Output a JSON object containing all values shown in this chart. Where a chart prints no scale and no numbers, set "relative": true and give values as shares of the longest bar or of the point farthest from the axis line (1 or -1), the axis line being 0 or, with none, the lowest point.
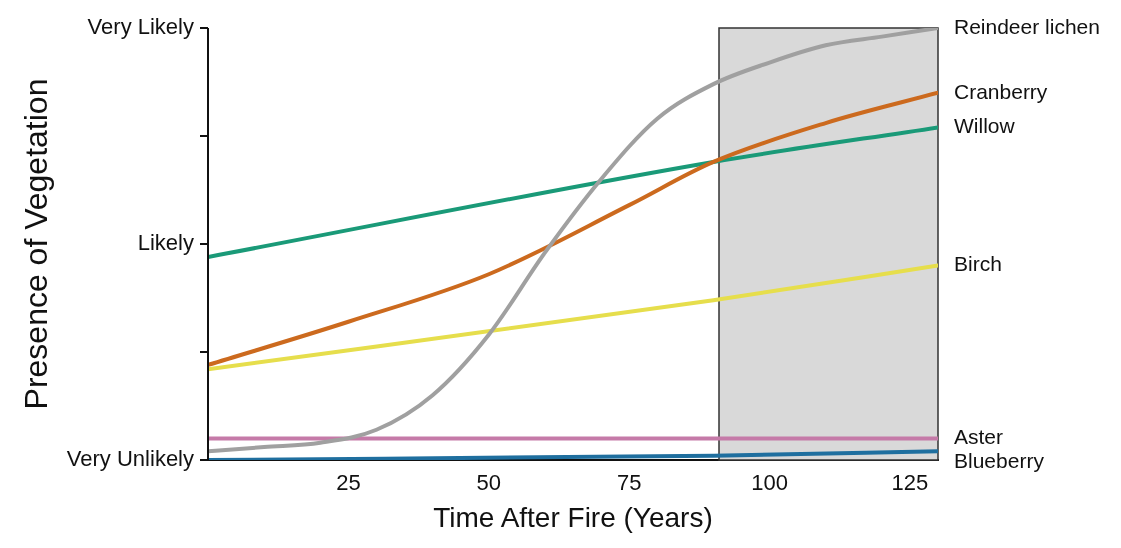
{
  "chart_data": {
    "type": "line",
    "relative": true,
    "xlabel": "Time After Fire (Years)",
    "ylabel": "Presence of Vegetation",
    "xlim": [
      0,
      130
    ],
    "xticks": [
      25,
      50,
      75,
      100,
      125
    ],
    "annotations": [
      "Very Likely",
      "Likely",
      "Very Unlikely"
    ],
    "grid": false,
    "legend": false,
    "marker": "none",
    "line_style": "solid",
    "bands": [
      {
        "axis": "x",
        "from": 91,
        "to": 130,
        "color": "#d9d9d9"
      }
    ],
    "series": [
      {
        "name": "Reindeer lichen",
        "color": "#a0a0a0",
        "x": [
          0,
          10,
          20,
          30,
          40,
          50,
          60,
          70,
          80,
          90,
          100,
          110,
          120,
          130
        ],
        "values": [
          0.02,
          0.03,
          0.04,
          0.07,
          0.15,
          0.29,
          0.48,
          0.65,
          0.79,
          0.87,
          0.92,
          0.96,
          0.98,
          1.0
        ]
      },
      {
        "name": "Cranberry",
        "color": "#cc6a1e",
        "x": [
          0,
          25,
          50,
          75,
          90,
          110,
          130
        ],
        "values": [
          0.22,
          0.32,
          0.43,
          0.59,
          0.69,
          0.78,
          0.85
        ]
      },
      {
        "name": "Willow",
        "color": "#1a9a78",
        "x": [
          0,
          90,
          130
        ],
        "values": [
          0.47,
          0.69,
          0.77
        ]
      },
      {
        "name": "Birch",
        "color": "#e6de4c",
        "x": [
          0,
          90,
          130
        ],
        "values": [
          0.21,
          0.37,
          0.45
        ]
      },
      {
        "name": "Aster",
        "color": "#c57aa8",
        "x": [
          0,
          130
        ],
        "values": [
          0.05,
          0.05
        ]
      },
      {
        "name": "Blueberry",
        "color": "#1f6f9f",
        "x": [
          0,
          90,
          130
        ],
        "values": [
          0.0,
          0.01,
          0.02
        ]
      }
    ]
  }
}
